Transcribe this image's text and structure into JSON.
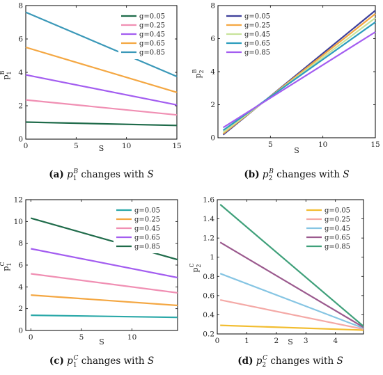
{
  "chart_data": [
    {
      "type": "line",
      "caption": {
        "letter": "(a)",
        "pre": " ",
        "var": "p",
        "sub": "1",
        "sup": "B",
        "post": " changes with ",
        "svar": "S"
      },
      "ylabel": {
        "base": "p",
        "sub": "1",
        "sup": "B"
      },
      "xlabel": "S",
      "xlim": [
        0,
        15
      ],
      "ylim": [
        0,
        8
      ],
      "xticks": [
        0,
        5,
        10,
        15
      ],
      "yticks": [
        0,
        2,
        4,
        6,
        8
      ],
      "xtick_labels": [
        "0",
        "5",
        "10",
        "15"
      ],
      "ytick_labels": [
        "0",
        "2",
        "4",
        "6",
        "8"
      ],
      "grid": false,
      "legend_position": "top-right",
      "series": [
        {
          "name": "g=0.05",
          "color": "#1f6b4a",
          "x": [
            0,
            15
          ],
          "y": [
            1.02,
            0.82
          ]
        },
        {
          "name": "g=0.25",
          "color": "#f08fb3",
          "x": [
            0,
            15
          ],
          "y": [
            2.35,
            1.45
          ]
        },
        {
          "name": "g=0.45",
          "color": "#a35df0",
          "x": [
            0,
            15
          ],
          "y": [
            3.85,
            2.05
          ]
        },
        {
          "name": "g=0.65",
          "color": "#f4a742",
          "x": [
            0,
            15
          ],
          "y": [
            5.5,
            2.8
          ]
        },
        {
          "name": "g=0.85",
          "color": "#3a98b8",
          "x": [
            0,
            15
          ],
          "y": [
            7.6,
            3.75
          ]
        }
      ]
    },
    {
      "type": "line",
      "caption": {
        "letter": "(b)",
        "pre": " ",
        "var": "p",
        "sub": "2",
        "sup": "B",
        "post": " changes with ",
        "svar": "S"
      },
      "ylabel": {
        "base": "p",
        "sub": "2",
        "sup": "B"
      },
      "xlabel": "S",
      "xlim": [
        0,
        15
      ],
      "ylim": [
        0,
        8
      ],
      "xticks": [
        5,
        10,
        15
      ],
      "yticks": [
        0,
        2,
        4,
        6,
        8
      ],
      "xtick_labels": [
        "5",
        "10",
        "15"
      ],
      "ytick_labels": [
        "0",
        "2",
        "4",
        "6",
        "8"
      ],
      "grid": false,
      "legend_position": "top-left",
      "series": [
        {
          "name": "g=0.05",
          "color": "#3d3f9a",
          "x": [
            0.5,
            15
          ],
          "y": [
            0.18,
            7.7
          ]
        },
        {
          "name": "g=0.25",
          "color": "#f4a742",
          "x": [
            0.5,
            15
          ],
          "y": [
            0.25,
            7.5
          ]
        },
        {
          "name": "g=0.45",
          "color": "#c8e39b",
          "x": [
            0.5,
            15
          ],
          "y": [
            0.33,
            7.25
          ]
        },
        {
          "name": "g=0.65",
          "color": "#2c9dbd",
          "x": [
            0.5,
            15
          ],
          "y": [
            0.45,
            7.0
          ]
        },
        {
          "name": "g=0.85",
          "color": "#a35df0",
          "x": [
            0.5,
            15
          ],
          "y": [
            0.62,
            6.4
          ]
        }
      ]
    },
    {
      "type": "line",
      "caption": {
        "letter": "(c)",
        "pre": " ",
        "var": "p",
        "sub": "1",
        "sup": "C",
        "post": " changes with ",
        "svar": "S"
      },
      "ylabel": {
        "base": "p",
        "sub": "1",
        "sup": "C"
      },
      "xlabel": "S",
      "xlim": [
        -0.5,
        14.5
      ],
      "ylim": [
        0,
        12
      ],
      "xticks": [
        0,
        5,
        10
      ],
      "yticks": [
        0,
        2,
        4,
        6,
        8,
        10,
        12
      ],
      "xtick_labels": [
        "0",
        "5",
        "10"
      ],
      "ytick_labels": [
        "0",
        "2",
        "4",
        "6",
        "8",
        "10",
        "12"
      ],
      "grid": false,
      "legend_position": "top-right",
      "series": [
        {
          "name": "g=0.05",
          "color": "#2aa8a8",
          "x": [
            0,
            14.5
          ],
          "y": [
            1.4,
            1.2
          ]
        },
        {
          "name": "g=0.25",
          "color": "#f4a742",
          "x": [
            0,
            14.5
          ],
          "y": [
            3.25,
            2.3
          ]
        },
        {
          "name": "g=0.45",
          "color": "#f08fb3",
          "x": [
            0,
            14.5
          ],
          "y": [
            5.2,
            3.45
          ]
        },
        {
          "name": "g=0.65",
          "color": "#a35df0",
          "x": [
            0,
            14.5
          ],
          "y": [
            7.5,
            4.85
          ]
        },
        {
          "name": "g=0.85",
          "color": "#1f6b4a",
          "x": [
            0,
            14.5
          ],
          "y": [
            10.3,
            6.5
          ]
        }
      ]
    },
    {
      "type": "line",
      "caption": {
        "letter": "(d)",
        "pre": " ",
        "var": "p",
        "sub": "2",
        "sup": "C",
        "post": " changes with ",
        "svar": "S"
      },
      "ylabel": {
        "base": "p",
        "sub": "2",
        "sup": "C"
      },
      "xlabel": "S",
      "xlim": [
        0,
        4.95
      ],
      "ylim": [
        0.2,
        1.6
      ],
      "xticks": [
        0,
        1,
        2,
        3,
        4
      ],
      "yticks": [
        0.2,
        0.4,
        0.6,
        0.8,
        1.0,
        1.2,
        1.4,
        1.6
      ],
      "xtick_labels": [
        "0",
        "1",
        "2",
        "3",
        "4"
      ],
      "ytick_labels": [
        "0.2",
        "0.4",
        "0.6",
        "0.8",
        "1",
        "1.2",
        "1.4",
        "1.6"
      ],
      "grid": false,
      "legend_position": "top-right",
      "series": [
        {
          "name": "g=0.05",
          "color": "#f2bd30",
          "x": [
            0.1,
            4.95
          ],
          "y": [
            0.29,
            0.24
          ]
        },
        {
          "name": "g=0.25",
          "color": "#f4a9a6",
          "x": [
            0.1,
            4.95
          ],
          "y": [
            0.555,
            0.25
          ]
        },
        {
          "name": "g=0.45",
          "color": "#86c5e3",
          "x": [
            0.1,
            4.95
          ],
          "y": [
            0.83,
            0.26
          ]
        },
        {
          "name": "g=0.65",
          "color": "#9b5a8e",
          "x": [
            0.1,
            4.95
          ],
          "y": [
            1.155,
            0.27
          ]
        },
        {
          "name": "g=0.85",
          "color": "#3fa07a",
          "x": [
            0.1,
            4.95
          ],
          "y": [
            1.55,
            0.28
          ]
        }
      ]
    }
  ]
}
